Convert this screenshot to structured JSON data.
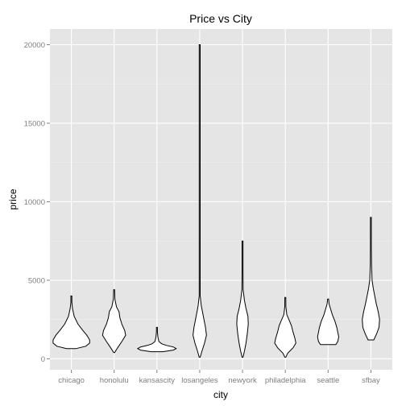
{
  "chart_data": {
    "type": "violin",
    "title": "Price vs City",
    "xlabel": "city",
    "ylabel": "price",
    "ylim": [
      -700,
      21000
    ],
    "yticks": [
      0,
      5000,
      10000,
      15000,
      20000
    ],
    "categories": [
      "chicago",
      "honolulu",
      "kansascity",
      "losangeles",
      "newyork",
      "philadelphia",
      "seattle",
      "sfbay"
    ],
    "grid": true,
    "background_color": "#e5e5e5",
    "violins": [
      {
        "city": "chicago",
        "profile": [
          [
            650,
            0.25
          ],
          [
            800,
            0.75
          ],
          [
            1000,
            0.95
          ],
          [
            1200,
            0.95
          ],
          [
            1500,
            0.8
          ],
          [
            1800,
            0.6
          ],
          [
            2200,
            0.35
          ],
          [
            2700,
            0.15
          ],
          [
            3200,
            0.06
          ],
          [
            3600,
            0.02
          ],
          [
            4000,
            0.02
          ]
        ]
      },
      {
        "city": "honolulu",
        "profile": [
          [
            400,
            0.02
          ],
          [
            700,
            0.18
          ],
          [
            1100,
            0.4
          ],
          [
            1500,
            0.6
          ],
          [
            1800,
            0.55
          ],
          [
            2200,
            0.4
          ],
          [
            2600,
            0.3
          ],
          [
            3000,
            0.25
          ],
          [
            3300,
            0.12
          ],
          [
            3800,
            0.04
          ],
          [
            4400,
            0.02
          ]
        ]
      },
      {
        "city": "kansascity",
        "profile": [
          [
            450,
            0.3
          ],
          [
            550,
            0.85
          ],
          [
            650,
            1.0
          ],
          [
            750,
            0.85
          ],
          [
            850,
            0.5
          ],
          [
            950,
            0.25
          ],
          [
            1100,
            0.1
          ],
          [
            1400,
            0.05
          ],
          [
            1700,
            0.02
          ],
          [
            2000,
            0.02
          ]
        ]
      },
      {
        "city": "losangeles",
        "profile": [
          [
            100,
            0.02
          ],
          [
            500,
            0.12
          ],
          [
            1000,
            0.25
          ],
          [
            1500,
            0.35
          ],
          [
            2000,
            0.3
          ],
          [
            2500,
            0.22
          ],
          [
            3000,
            0.14
          ],
          [
            3400,
            0.08
          ],
          [
            4000,
            0.02
          ],
          [
            10000,
            0.01
          ],
          [
            20000,
            0.01
          ]
        ]
      },
      {
        "city": "newyork",
        "profile": [
          [
            100,
            0.02
          ],
          [
            500,
            0.1
          ],
          [
            1000,
            0.18
          ],
          [
            1600,
            0.25
          ],
          [
            2200,
            0.3
          ],
          [
            2700,
            0.28
          ],
          [
            3200,
            0.18
          ],
          [
            3700,
            0.1
          ],
          [
            4400,
            0.03
          ],
          [
            5500,
            0.01
          ],
          [
            7500,
            0.01
          ]
        ]
      },
      {
        "city": "philadelphia",
        "profile": [
          [
            100,
            0.02
          ],
          [
            350,
            0.12
          ],
          [
            700,
            0.4
          ],
          [
            1000,
            0.55
          ],
          [
            1300,
            0.5
          ],
          [
            1700,
            0.4
          ],
          [
            2100,
            0.32
          ],
          [
            2400,
            0.22
          ],
          [
            2800,
            0.08
          ],
          [
            3300,
            0.03
          ],
          [
            3900,
            0.02
          ]
        ]
      },
      {
        "city": "seattle",
        "profile": [
          [
            900,
            0.4
          ],
          [
            1100,
            0.5
          ],
          [
            1400,
            0.55
          ],
          [
            1700,
            0.5
          ],
          [
            2000,
            0.45
          ],
          [
            2400,
            0.35
          ],
          [
            2800,
            0.22
          ],
          [
            3200,
            0.12
          ],
          [
            3500,
            0.05
          ],
          [
            3800,
            0.02
          ]
        ]
      },
      {
        "city": "sfbay",
        "profile": [
          [
            1200,
            0.15
          ],
          [
            1600,
            0.3
          ],
          [
            2000,
            0.42
          ],
          [
            2500,
            0.45
          ],
          [
            3000,
            0.38
          ],
          [
            3500,
            0.28
          ],
          [
            4000,
            0.2
          ],
          [
            4500,
            0.12
          ],
          [
            5000,
            0.06
          ],
          [
            6000,
            0.03
          ],
          [
            7000,
            0.02
          ],
          [
            9000,
            0.01
          ]
        ]
      }
    ]
  }
}
